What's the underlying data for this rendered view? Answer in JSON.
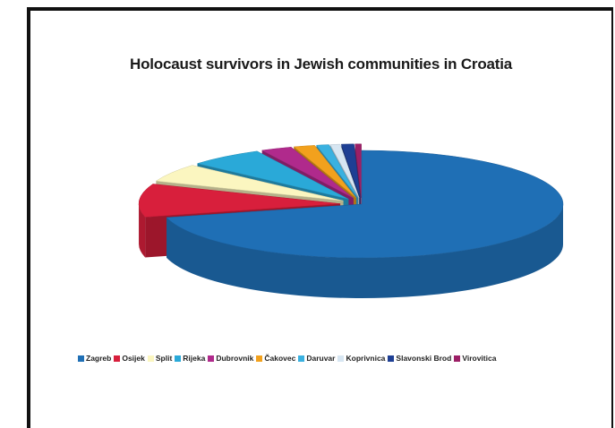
{
  "chart_data": {
    "type": "pie",
    "title": "Holocaust survivors in Jewish communities in Croatia",
    "categories": [
      "Zagreb",
      "Osijek",
      "Split",
      "Rijeka",
      "Dubrovnik",
      "Čakovec",
      "Daruvar",
      "Koprivnica",
      "Slavonski Brod",
      "Virovitica"
    ],
    "values": [
      71.0,
      10.0,
      5.5,
      6.0,
      2.5,
      1.7,
      1.0,
      0.8,
      1.0,
      0.5
    ],
    "colors": [
      "#1f6fb5",
      "#d81f3c",
      "#fbf6c0",
      "#2aa9d8",
      "#b02a8c",
      "#f2a11d",
      "#3ab1e0",
      "#d7e6f2",
      "#1e3f94",
      "#9c1f66"
    ],
    "legend_position": "bottom",
    "style": "3d-exploded"
  }
}
